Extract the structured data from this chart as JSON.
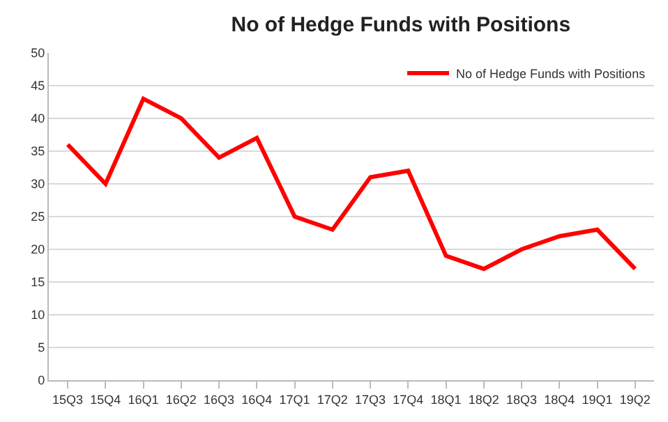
{
  "chart_data": {
    "type": "line",
    "title": "No of Hedge Funds with Positions",
    "categories": [
      "15Q3",
      "15Q4",
      "16Q1",
      "16Q2",
      "16Q3",
      "16Q4",
      "17Q1",
      "17Q2",
      "17Q3",
      "17Q4",
      "18Q1",
      "18Q2",
      "18Q3",
      "18Q4",
      "19Q1",
      "19Q2"
    ],
    "series": [
      {
        "name": "No of Hedge Funds with Positions",
        "color": "#ff0000",
        "values": [
          36,
          30,
          43,
          40,
          34,
          37,
          25,
          23,
          31,
          32,
          19,
          17,
          20,
          22,
          23,
          17
        ]
      }
    ],
    "ylim": [
      0,
      50
    ],
    "yticks": [
      0,
      5,
      10,
      15,
      20,
      25,
      30,
      35,
      40,
      45,
      50
    ],
    "grid": "y",
    "legend": "top right",
    "marker": "none",
    "line_style": "solid"
  }
}
